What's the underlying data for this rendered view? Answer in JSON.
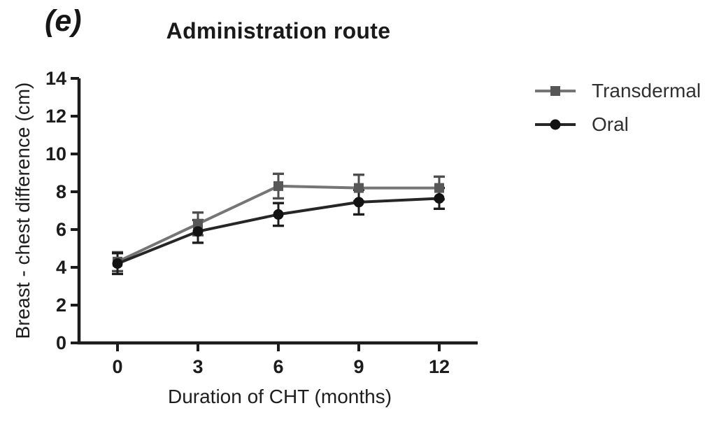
{
  "panel_label": "(e)",
  "chart_data": {
    "type": "line",
    "title": "Administration route",
    "xlabel": "Duration of CHT (months)",
    "ylabel": "Breast - chest difference (cm)",
    "x": [
      0,
      3,
      6,
      9,
      12
    ],
    "yticks": [
      0,
      2,
      4,
      6,
      8,
      10,
      12,
      14
    ],
    "ylim": [
      0,
      14
    ],
    "xlim": [
      -1.45,
      13.45
    ],
    "grid": false,
    "legend_position": "right-outside",
    "error_bars": "sd, with caps",
    "axis_color": "#1c1c1c",
    "series": [
      {
        "name": "Transdermal",
        "marker": "square",
        "color": "#757575",
        "marker_color": "#575757",
        "error_color": "#4e4e4e",
        "values": [
          4.3,
          6.3,
          8.3,
          8.2,
          8.2
        ],
        "error": [
          0.5,
          0.6,
          0.65,
          0.7,
          0.6
        ]
      },
      {
        "name": "Oral",
        "marker": "circle",
        "color": "#262626",
        "marker_color": "#121212",
        "error_color": "#1c1c1c",
        "values": [
          4.2,
          5.9,
          6.8,
          7.45,
          7.65
        ],
        "error": [
          0.55,
          0.6,
          0.6,
          0.65,
          0.55
        ]
      }
    ]
  }
}
